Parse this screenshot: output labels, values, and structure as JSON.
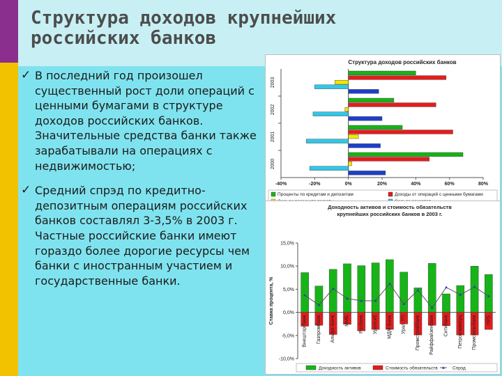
{
  "slide": {
    "title_lines": [
      "Структура доходов крупнейших",
      "российских банков"
    ],
    "bullets": [
      "В последний год произошел существенный рост доли операций с ценными бумагами в структуре доходов российских банков. Значительные средства банки также зарабатывали на операциях с недвижимостью;",
      "Средний спрэд по кредитно-депозитным операциям российских банков составлял 3-3,5% в 2003 г. Частные российские банки имеют гораздо более дорогие ресурсы чем банки с иностранным участием и государственные банки."
    ],
    "check_icon": "✓"
  },
  "colors": {
    "green": "#17b417",
    "red": "#e51c1c",
    "yellow": "#f0e800",
    "cyan": "#33c6e6",
    "blue": "#1d3fcc",
    "navy": "#1b1b7a",
    "bg": "#7fe3ef",
    "gold": "#f2c200",
    "purple": "#8a2f8e"
  },
  "chart_data": [
    {
      "type": "bar",
      "orientation": "horizontal",
      "title": "Структура доходов российских банков",
      "categories": [
        "2003",
        "2002",
        "2001",
        "2000"
      ],
      "xlim": [
        -40,
        80
      ],
      "x_ticks": [
        "-40%",
        "-20%",
        "0%",
        "20%",
        "40%",
        "60%",
        "80%"
      ],
      "series": [
        {
          "name": "Проценты по кредитам и депозитам",
          "color": "#17b417",
          "values": [
            40,
            27,
            32,
            68
          ]
        },
        {
          "name": "Доходы от операций с ценными бумагами",
          "color": "#e51c1c",
          "values": [
            58,
            52,
            62,
            48
          ]
        },
        {
          "name": "Сальдо пересчета валюты",
          "color": "#f0e800",
          "values": [
            -8,
            -2,
            6,
            2
          ]
        },
        {
          "name": "Сальдо резервов",
          "color": "#33c6e6",
          "values": [
            -20,
            -21,
            -25,
            -23
          ]
        },
        {
          "name": "Комиссия",
          "color": "#1d3fcc",
          "values": [
            18,
            20,
            19,
            22
          ]
        }
      ],
      "legend": "bottom",
      "grid": false
    },
    {
      "type": "bar",
      "title": "Доходность активов и стоимость обязательств крупнейших российских банков в 2003 г.",
      "ylabel": "Ставка процента, %",
      "ylim": [
        -10,
        15
      ],
      "y_ticks": [
        "15,0%",
        "10,0%",
        "5,0%",
        "0,0%",
        "-5,0%",
        "-10,0%"
      ],
      "categories": [
        "Внешторгбанк",
        "Газпромбанк",
        "Альфа-Банк",
        "ММБ",
        "Росбанк",
        "Уралсиб",
        "МДМ-Банк",
        "Урал ТП",
        "Промстройбанк",
        "Райффайзенбанк",
        "Ситибанк",
        "Петрокоммерц",
        "Промсвязьбанк",
        "НРБ"
      ],
      "series": [
        {
          "name": "Доходность активов",
          "color": "#17b417",
          "values": [
            8.6,
            5.7,
            9.3,
            10.5,
            10.1,
            10.7,
            11.4,
            8.7,
            5.3,
            10.6,
            4.0,
            5.8,
            10.0,
            8.2
          ]
        },
        {
          "name": "Стоимость обязательств",
          "color": "#e51c1c",
          "values": [
            -3.0,
            -2.8,
            -4.8,
            -2.6,
            -4.0,
            -3.7,
            -3.7,
            -2.5,
            -4.9,
            -2.8,
            -2.9,
            -4.9,
            -4.9,
            -3.7
          ]
        },
        {
          "name": "Спрэд",
          "color": "#2040c8",
          "type": "line",
          "values": [
            3.7,
            1.6,
            5.1,
            3.0,
            2.5,
            2.5,
            6.2,
            1.8,
            4.8,
            1.0,
            5.4,
            3.8,
            5.5,
            3.5
          ]
        }
      ],
      "legend": "bottom",
      "grid": false
    }
  ]
}
